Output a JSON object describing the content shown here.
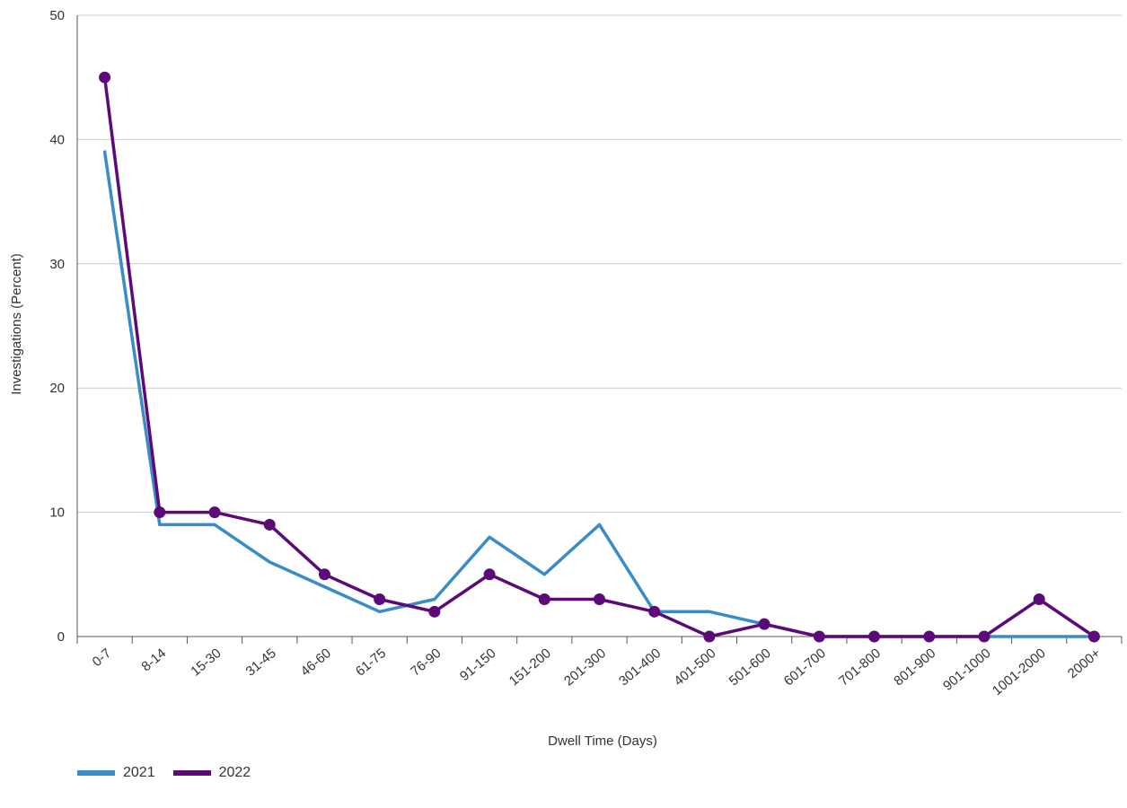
{
  "chart_data": {
    "type": "line",
    "title": "",
    "xlabel": "Dwell Time (Days)",
    "ylabel": "Investigations (Percent)",
    "ylim": [
      0,
      50
    ],
    "yticks": [
      0,
      10,
      20,
      30,
      40,
      50
    ],
    "grid": "horizontal",
    "legend_position": "bottom-left",
    "categories": [
      "0-7",
      "8-14",
      "15-30",
      "31-45",
      "46-60",
      "61-75",
      "76-90",
      "91-150",
      "151-200",
      "201-300",
      "301-400",
      "401-500",
      "501-600",
      "601-700",
      "701-800",
      "801-900",
      "901-1000",
      "1001-2000",
      "2000+"
    ],
    "series": [
      {
        "name": "2021",
        "color": "#3a8cc6",
        "markers": false,
        "values": [
          39,
          9,
          9,
          6,
          4,
          2,
          3,
          8,
          5,
          9,
          2,
          2,
          1,
          0,
          0,
          0,
          0,
          0,
          0
        ]
      },
      {
        "name": "2022",
        "color": "#5c0a78",
        "markers": true,
        "values": [
          45,
          10,
          10,
          9,
          5,
          3,
          2,
          5,
          3,
          3,
          2,
          0,
          1,
          0,
          0,
          0,
          0,
          3,
          0
        ]
      }
    ]
  }
}
